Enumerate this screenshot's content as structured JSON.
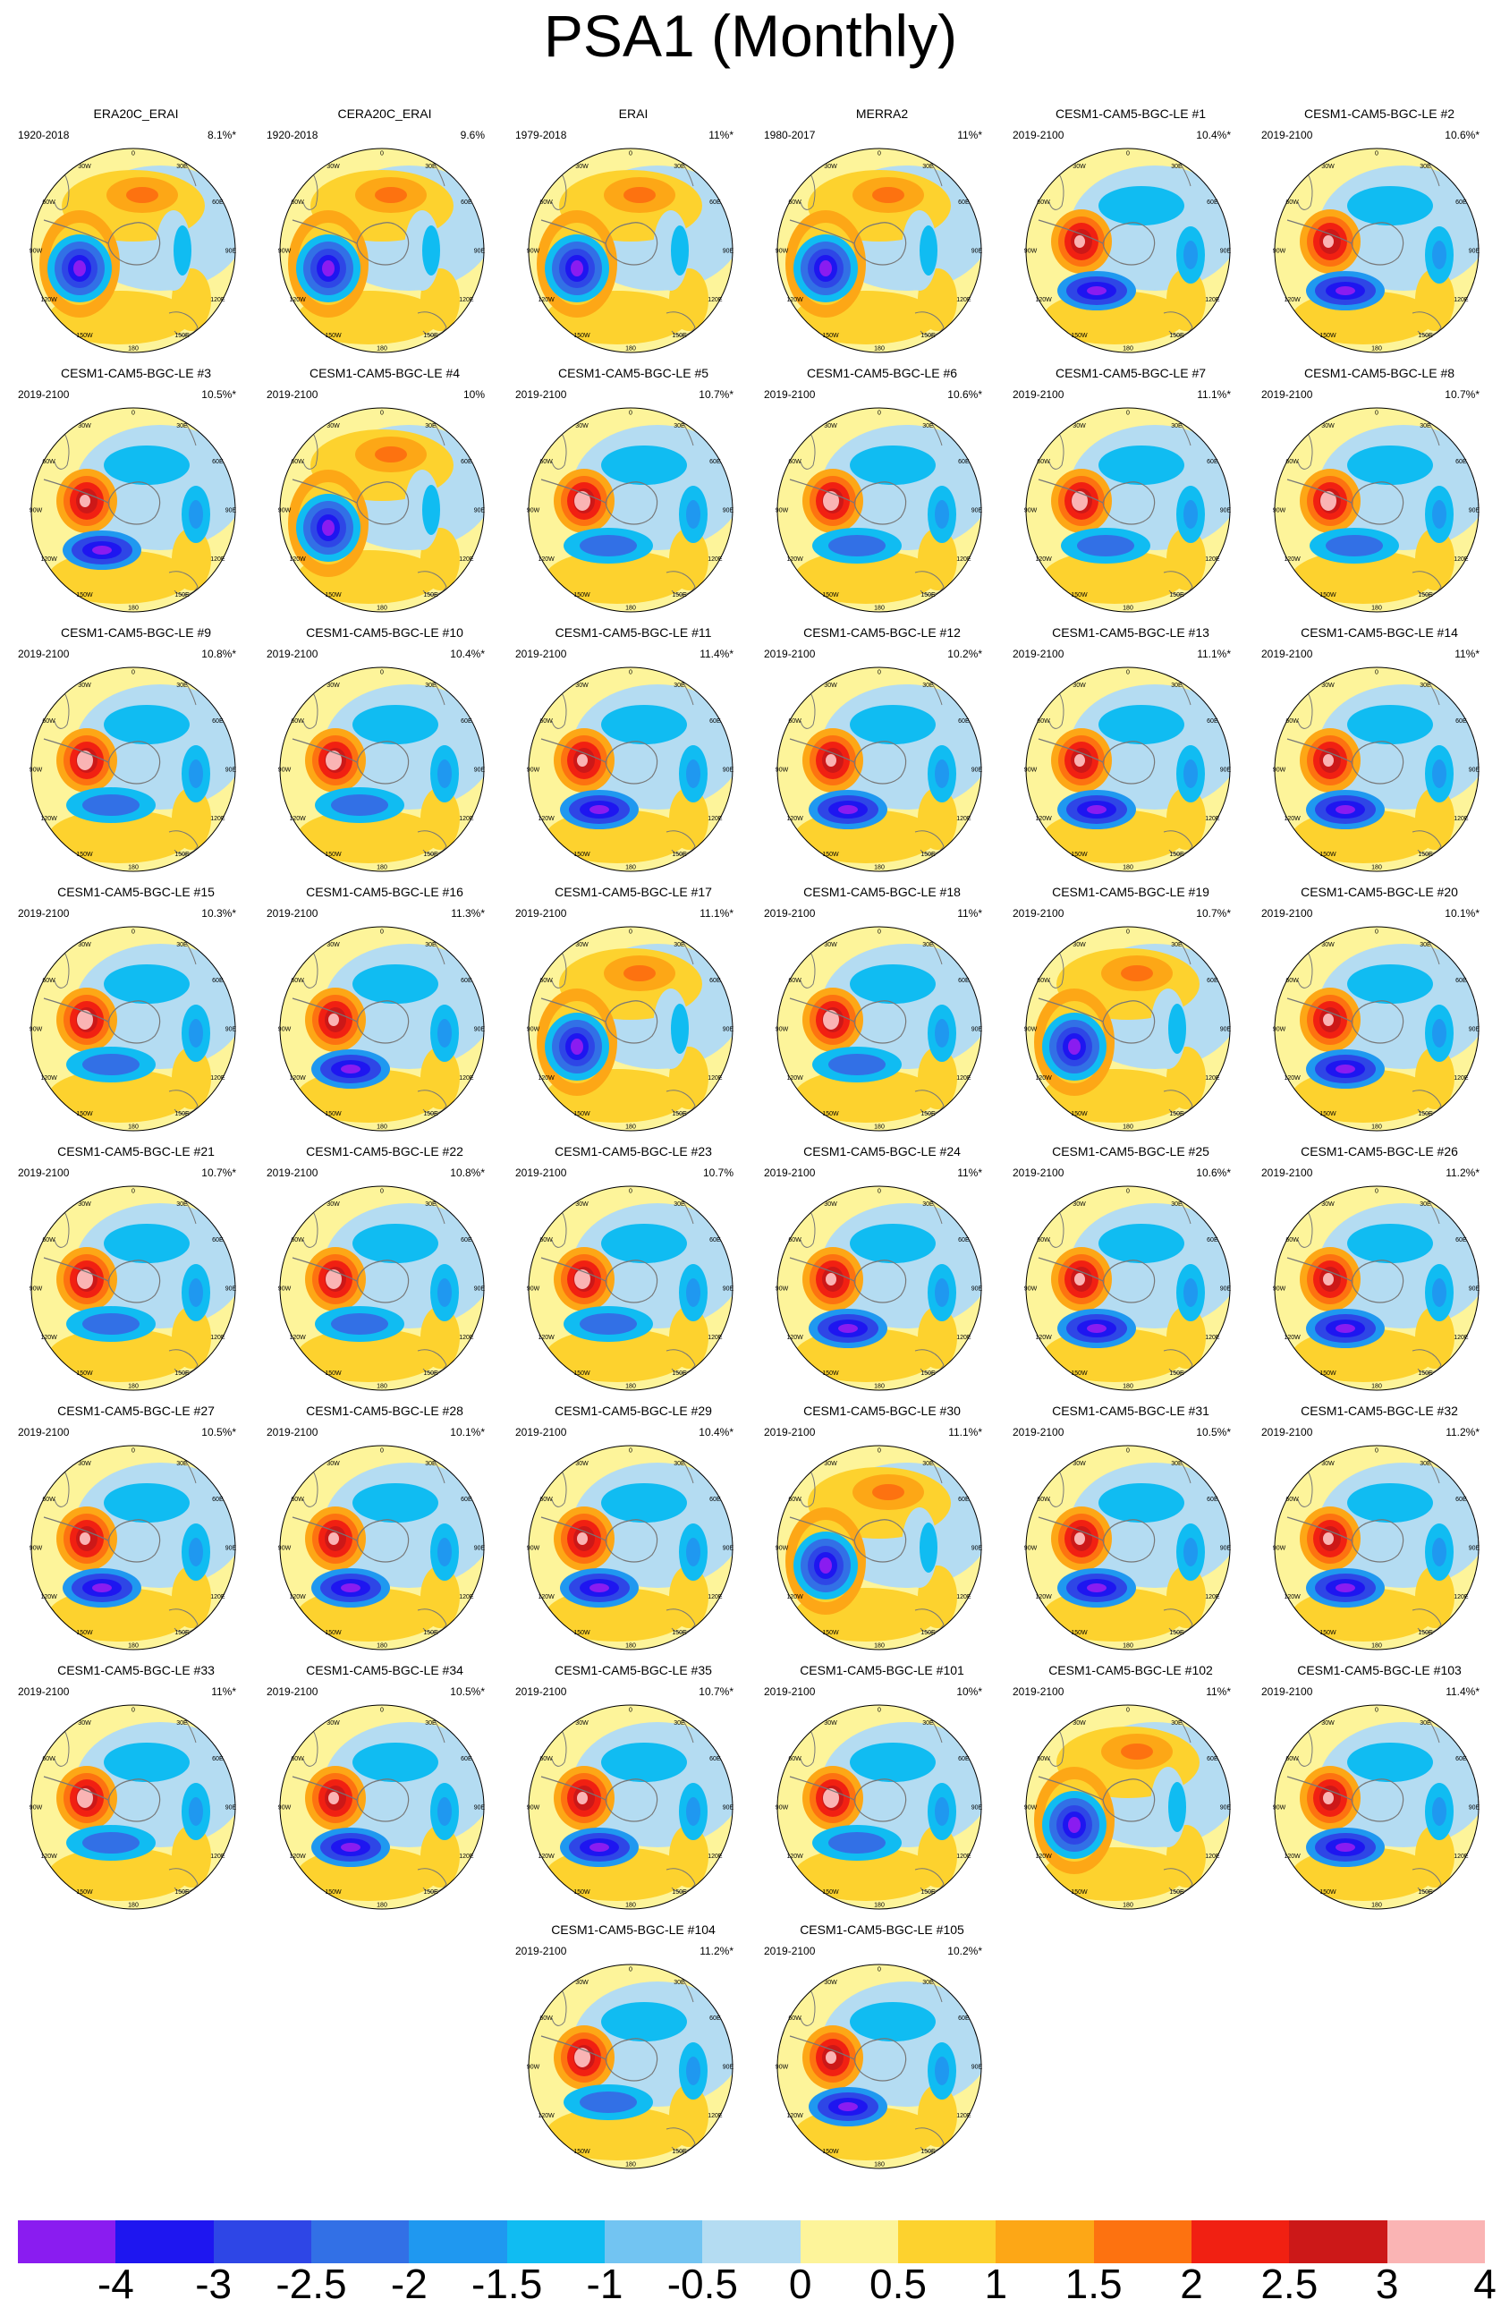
{
  "title": "PSA1 (Monthly)",
  "lon_labels": [
    "0",
    "30E",
    "60E",
    "90E",
    "120E",
    "150E",
    "180",
    "150W",
    "120W",
    "90W",
    "60W",
    "30W"
  ],
  "colorbar": {
    "ticks": [
      "-4",
      "-3",
      "-2.5",
      "-2",
      "-1.5",
      "-1",
      "-0.5",
      "0",
      "0.5",
      "1",
      "1.5",
      "2",
      "2.5",
      "3",
      "4"
    ],
    "colors": [
      "#8a1cf0",
      "#1e16f0",
      "#2e46e6",
      "#3270e6",
      "#1f98f0",
      "#10bcf2",
      "#72c4f2",
      "#b4dcf2",
      "#fdf49a",
      "#fdd22e",
      "#fda716",
      "#fd7210",
      "#f12012",
      "#cc1818",
      "#fab4b4"
    ]
  },
  "panels": [
    {
      "title": "ERA20C_ERAI",
      "period": "1920-2018",
      "pct": "8.1%*"
    },
    {
      "title": "CERA20C_ERAI",
      "period": "1920-2018",
      "pct": "9.6%"
    },
    {
      "title": "ERAI",
      "period": "1979-2018",
      "pct": "11%*"
    },
    {
      "title": "MERRA2",
      "period": "1980-2017",
      "pct": "11%*"
    },
    {
      "title": "CESM1-CAM5-BGC-LE #1",
      "period": "2019-2100",
      "pct": "10.4%*"
    },
    {
      "title": "CESM1-CAM5-BGC-LE #2",
      "period": "2019-2100",
      "pct": "10.6%*"
    },
    {
      "title": "CESM1-CAM5-BGC-LE #3",
      "period": "2019-2100",
      "pct": "10.5%*"
    },
    {
      "title": "CESM1-CAM5-BGC-LE #4",
      "period": "2019-2100",
      "pct": "10%"
    },
    {
      "title": "CESM1-CAM5-BGC-LE #5",
      "period": "2019-2100",
      "pct": "10.7%*"
    },
    {
      "title": "CESM1-CAM5-BGC-LE #6",
      "period": "2019-2100",
      "pct": "10.6%*"
    },
    {
      "title": "CESM1-CAM5-BGC-LE #7",
      "period": "2019-2100",
      "pct": "11.1%*"
    },
    {
      "title": "CESM1-CAM5-BGC-LE #8",
      "period": "2019-2100",
      "pct": "10.7%*"
    },
    {
      "title": "CESM1-CAM5-BGC-LE #9",
      "period": "2019-2100",
      "pct": "10.8%*"
    },
    {
      "title": "CESM1-CAM5-BGC-LE #10",
      "period": "2019-2100",
      "pct": "10.4%*"
    },
    {
      "title": "CESM1-CAM5-BGC-LE #11",
      "period": "2019-2100",
      "pct": "11.4%*"
    },
    {
      "title": "CESM1-CAM5-BGC-LE #12",
      "period": "2019-2100",
      "pct": "10.2%*"
    },
    {
      "title": "CESM1-CAM5-BGC-LE #13",
      "period": "2019-2100",
      "pct": "11.1%*"
    },
    {
      "title": "CESM1-CAM5-BGC-LE #14",
      "period": "2019-2100",
      "pct": "11%*"
    },
    {
      "title": "CESM1-CAM5-BGC-LE #15",
      "period": "2019-2100",
      "pct": "10.3%*"
    },
    {
      "title": "CESM1-CAM5-BGC-LE #16",
      "period": "2019-2100",
      "pct": "11.3%*"
    },
    {
      "title": "CESM1-CAM5-BGC-LE #17",
      "period": "2019-2100",
      "pct": "11.1%*"
    },
    {
      "title": "CESM1-CAM5-BGC-LE #18",
      "period": "2019-2100",
      "pct": "11%*"
    },
    {
      "title": "CESM1-CAM5-BGC-LE #19",
      "period": "2019-2100",
      "pct": "10.7%*"
    },
    {
      "title": "CESM1-CAM5-BGC-LE #20",
      "period": "2019-2100",
      "pct": "10.1%*"
    },
    {
      "title": "CESM1-CAM5-BGC-LE #21",
      "period": "2019-2100",
      "pct": "10.7%*"
    },
    {
      "title": "CESM1-CAM5-BGC-LE #22",
      "period": "2019-2100",
      "pct": "10.8%*"
    },
    {
      "title": "CESM1-CAM5-BGC-LE #23",
      "period": "2019-2100",
      "pct": "10.7%"
    },
    {
      "title": "CESM1-CAM5-BGC-LE #24",
      "period": "2019-2100",
      "pct": "11%*"
    },
    {
      "title": "CESM1-CAM5-BGC-LE #25",
      "period": "2019-2100",
      "pct": "10.6%*"
    },
    {
      "title": "CESM1-CAM5-BGC-LE #26",
      "period": "2019-2100",
      "pct": "11.2%*"
    },
    {
      "title": "CESM1-CAM5-BGC-LE #27",
      "period": "2019-2100",
      "pct": "10.5%*"
    },
    {
      "title": "CESM1-CAM5-BGC-LE #28",
      "period": "2019-2100",
      "pct": "10.1%*"
    },
    {
      "title": "CESM1-CAM5-BGC-LE #29",
      "period": "2019-2100",
      "pct": "10.4%*"
    },
    {
      "title": "CESM1-CAM5-BGC-LE #30",
      "period": "2019-2100",
      "pct": "11.1%*"
    },
    {
      "title": "CESM1-CAM5-BGC-LE #31",
      "period": "2019-2100",
      "pct": "10.5%*"
    },
    {
      "title": "CESM1-CAM5-BGC-LE #32",
      "period": "2019-2100",
      "pct": "11.2%*"
    },
    {
      "title": "CESM1-CAM5-BGC-LE #33",
      "period": "2019-2100",
      "pct": "11%*"
    },
    {
      "title": "CESM1-CAM5-BGC-LE #34",
      "period": "2019-2100",
      "pct": "10.5%*"
    },
    {
      "title": "CESM1-CAM5-BGC-LE #35",
      "period": "2019-2100",
      "pct": "10.7%*"
    },
    {
      "title": "CESM1-CAM5-BGC-LE #101",
      "period": "2019-2100",
      "pct": "10%*"
    },
    {
      "title": "CESM1-CAM5-BGC-LE #102",
      "period": "2019-2100",
      "pct": "11%*"
    },
    {
      "title": "CESM1-CAM5-BGC-LE #103",
      "period": "2019-2100",
      "pct": "11.4%*"
    },
    {
      "title": "CESM1-CAM5-BGC-LE #104",
      "period": "2019-2100",
      "pct": "11.2%*"
    },
    {
      "title": "CESM1-CAM5-BGC-LE #105",
      "period": "2019-2100",
      "pct": "10.2%*"
    }
  ]
}
